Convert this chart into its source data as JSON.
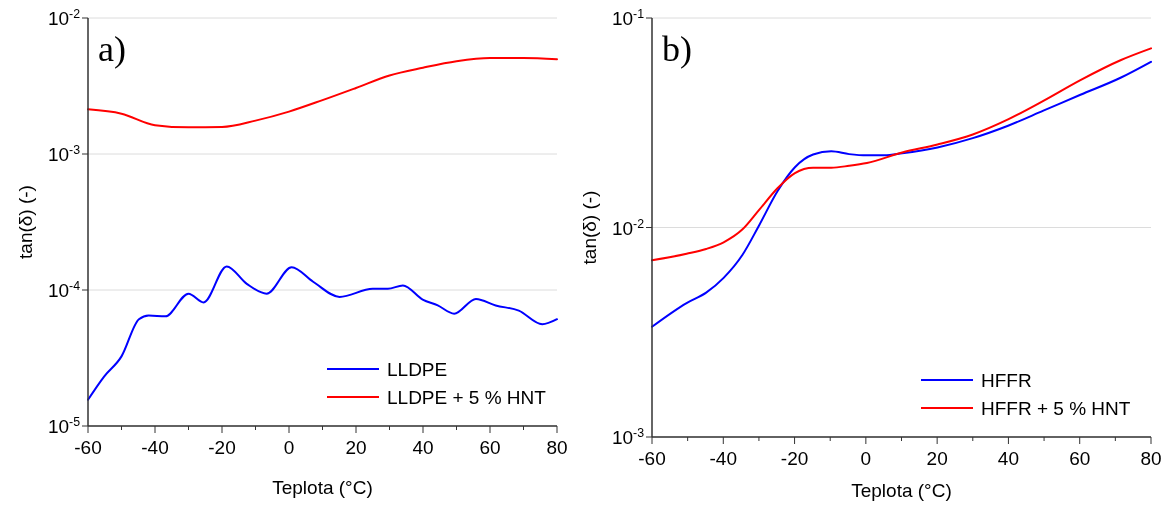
{
  "chart_data": [
    {
      "type": "line",
      "xlabel": "Teplota (°C)",
      "ylabel": "tan(δ) (-)",
      "annotations": [
        "a)"
      ],
      "log": "y",
      "grid": "y",
      "legend": "bottom right",
      "xlim": [
        -60,
        80
      ],
      "xticks": [
        -60,
        {
          "value": -50,
          "label": null
        },
        -40,
        {
          "value": -30,
          "label": null
        },
        -20,
        {
          "value": -10,
          "label": null
        },
        0,
        {
          "value": 10,
          "label": null
        },
        20,
        {
          "value": 30,
          "label": null
        },
        40,
        {
          "value": 50,
          "label": null
        },
        60,
        {
          "value": 70,
          "label": null
        },
        80
      ],
      "ylim": [
        1e-05,
        0.01
      ],
      "yticks": [
        {
          "value": 1e-05,
          "label": "10$^{-5}$"
        },
        {
          "value": 0.0001,
          "label": "10$^{-4}$"
        },
        {
          "value": 0.001,
          "label": "10$^{-3}$"
        },
        {
          "value": 0.01,
          "label": "10$^{-2}$"
        }
      ],
      "series": [
        {
          "name": "LLDPE",
          "color": "#0000ff",
          "x": [
            -60,
            -55.2,
            -50,
            -44.8,
            -41.9,
            -36.9,
            -30,
            -25.5,
            -18.6,
            -12.6,
            -6.7,
            0.8,
            7.2,
            15.1,
            25,
            29.5,
            34,
            39.9,
            44.4,
            49.3,
            55.8,
            61.7,
            68.6,
            75.6,
            80
          ],
          "values": [
            1.56e-05,
            2.31e-05,
            3.25e-05,
            6.1e-05,
            6.5e-05,
            6.4e-05,
            9.4e-05,
            8.1e-05,
            0.000149,
            0.000111,
            9.4e-05,
            0.000147,
            0.000115,
            8.9e-05,
            0.000102,
            0.000102,
            0.000108,
            8.5e-05,
            7.7e-05,
            6.7e-05,
            8.6e-05,
            7.7e-05,
            7.05e-05,
            5.6e-05,
            6.1e-05
          ]
        },
        {
          "name": "LLDPE + 5 % HNT",
          "color": "#ff0000",
          "x": [
            -60,
            -50,
            -40,
            -30,
            -20,
            -10,
            0,
            10,
            20,
            30,
            40,
            50,
            60,
            70,
            80
          ],
          "values": [
            0.00213,
            0.00198,
            0.00163,
            0.00157,
            0.00158,
            0.00176,
            0.00205,
            0.00249,
            0.00306,
            0.00378,
            0.00431,
            0.00481,
            0.00508,
            0.00508,
            0.00498
          ]
        }
      ]
    },
    {
      "type": "line",
      "xlabel": "Teplota (°C)",
      "ylabel": "tan(δ) (-)",
      "annotations": [
        "b)"
      ],
      "log": "y",
      "grid": "y",
      "legend": "bottom right",
      "xlim": [
        -60,
        80
      ],
      "xticks": [
        -60,
        {
          "value": -50,
          "label": null
        },
        -40,
        {
          "value": -30,
          "label": null
        },
        -20,
        {
          "value": -10,
          "label": null
        },
        0,
        {
          "value": 10,
          "label": null
        },
        20,
        {
          "value": 30,
          "label": null
        },
        40,
        {
          "value": 50,
          "label": null
        },
        60,
        {
          "value": 70,
          "label": null
        },
        80
      ],
      "ylim": [
        0.001,
        0.1
      ],
      "yticks": [
        {
          "value": 0.001,
          "label": "10$^{-3}$"
        },
        {
          "value": 0.01,
          "label": "10$^{-2}$"
        },
        {
          "value": 0.1,
          "label": "10$^{-1}$"
        }
      ],
      "series": [
        {
          "name": "HFFR",
          "color": "#0000ff",
          "x": [
            -60,
            -50.3,
            -44.8,
            -39.9,
            -34.6,
            -30,
            -24.8,
            -19.9,
            -14.8,
            -9.7,
            -4.7,
            0.3,
            5.2,
            10.2,
            20.1,
            30,
            39.9,
            49.8,
            60.2,
            71.6,
            80
          ],
          "values": [
            0.00336,
            0.00436,
            0.00489,
            0.00575,
            0.00741,
            0.0102,
            0.0149,
            0.0194,
            0.0223,
            0.0231,
            0.0224,
            0.0221,
            0.0221,
            0.0226,
            0.0241,
            0.0267,
            0.0306,
            0.0361,
            0.043,
            0.052,
            0.0618
          ]
        },
        {
          "name": "HFFR + 5 % HNT",
          "color": "#ff0000",
          "x": [
            -60,
            -50.3,
            -44.8,
            -39.9,
            -34.6,
            -30,
            -24.8,
            -19.9,
            -14.8,
            -9.7,
            -4.7,
            0.3,
            10.2,
            20.1,
            30,
            39.9,
            49.8,
            60.2,
            71.6,
            80
          ],
          "values": [
            0.00697,
            0.0075,
            0.0079,
            0.0085,
            0.0098,
            0.0121,
            0.0154,
            0.0182,
            0.0193,
            0.0193,
            0.0197,
            0.0203,
            0.0228,
            0.0249,
            0.0278,
            0.0328,
            0.0402,
            0.0505,
            0.063,
            0.0716
          ]
        }
      ]
    }
  ]
}
